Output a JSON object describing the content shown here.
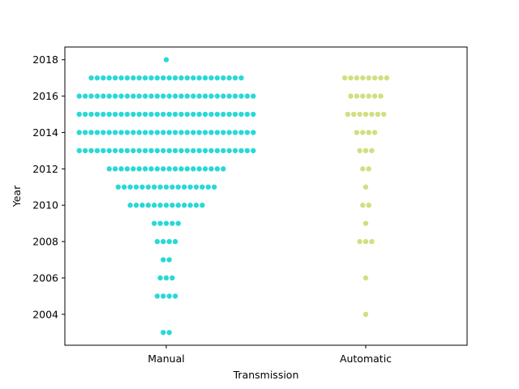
{
  "chart_data": {
    "type": "scatter",
    "subtype": "swarm",
    "title": "",
    "xlabel": "Transmission",
    "ylabel": "Year",
    "categories": [
      "Manual",
      "Automatic"
    ],
    "ylim": [
      2002.3,
      2018.7
    ],
    "yticks": [
      2004,
      2006,
      2008,
      2010,
      2012,
      2014,
      2016,
      2018
    ],
    "grid": false,
    "legend": "none",
    "series": [
      {
        "category": "Manual",
        "color": "#2ad8d8",
        "counts": [
          {
            "year": 2003,
            "count": 2
          },
          {
            "year": 2005,
            "count": 4
          },
          {
            "year": 2006,
            "count": 3
          },
          {
            "year": 2007,
            "count": 2
          },
          {
            "year": 2008,
            "count": 4
          },
          {
            "year": 2009,
            "count": 5
          },
          {
            "year": 2010,
            "count": 13
          },
          {
            "year": 2011,
            "count": 17
          },
          {
            "year": 2012,
            "count": 20
          },
          {
            "year": 2013,
            "count": 30
          },
          {
            "year": 2014,
            "count": 30
          },
          {
            "year": 2015,
            "count": 30
          },
          {
            "year": 2016,
            "count": 30
          },
          {
            "year": 2017,
            "count": 26
          },
          {
            "year": 2018,
            "count": 1
          }
        ]
      },
      {
        "category": "Automatic",
        "color": "#d3de80",
        "counts": [
          {
            "year": 2004,
            "count": 1
          },
          {
            "year": 2006,
            "count": 1
          },
          {
            "year": 2008,
            "count": 3
          },
          {
            "year": 2009,
            "count": 1
          },
          {
            "year": 2010,
            "count": 2
          },
          {
            "year": 2011,
            "count": 1
          },
          {
            "year": 2012,
            "count": 2
          },
          {
            "year": 2013,
            "count": 3
          },
          {
            "year": 2014,
            "count": 4
          },
          {
            "year": 2015,
            "count": 7
          },
          {
            "year": 2016,
            "count": 6
          },
          {
            "year": 2017,
            "count": 8
          }
        ]
      }
    ]
  }
}
